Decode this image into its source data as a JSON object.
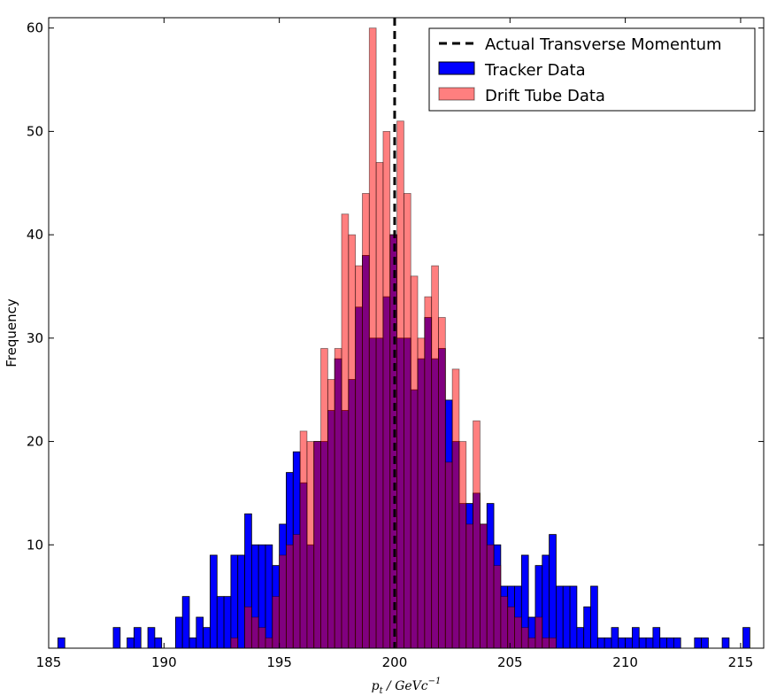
{
  "chart_data": {
    "type": "bar",
    "title": "",
    "xlabel": "p_t / GeVc^{-1}",
    "xlabel_main": "p",
    "xlabel_sub": "t",
    "xlabel_rest": " / GeVc",
    "xlabel_sup": "−1",
    "ylabel": "Frequency",
    "xlim": [
      185,
      216
    ],
    "ylim": [
      0,
      61
    ],
    "xticks": [
      185,
      190,
      195,
      200,
      205,
      210,
      215
    ],
    "yticks": [
      10,
      20,
      30,
      40,
      50,
      60
    ],
    "grid": false,
    "legend_position": "top-right",
    "bin_width": 0.3,
    "reference_line": {
      "name": "Actual Transverse Momentum",
      "x": 200,
      "style": "dashed",
      "color": "#000000"
    },
    "series": [
      {
        "name": "Tracker Data",
        "color": "#0000ff",
        "bin_starts": [
          185.4,
          187.8,
          188.4,
          188.7,
          189.3,
          189.6,
          190.5,
          190.8,
          191.1,
          191.4,
          191.7,
          192.0,
          192.3,
          192.6,
          192.9,
          193.2,
          193.5,
          193.8,
          194.1,
          194.4,
          194.7,
          195.0,
          195.3,
          195.6,
          195.9,
          196.2,
          196.5,
          196.8,
          197.1,
          197.4,
          197.7,
          198.0,
          198.3,
          198.6,
          198.9,
          199.2,
          199.5,
          199.8,
          200.1,
          200.4,
          200.7,
          201.0,
          201.3,
          201.6,
          201.9,
          202.2,
          202.5,
          202.8,
          203.1,
          203.4,
          203.7,
          204.0,
          204.3,
          204.6,
          204.9,
          205.2,
          205.5,
          205.8,
          206.1,
          206.4,
          206.7,
          207.0,
          207.3,
          207.6,
          207.9,
          208.2,
          208.5,
          208.8,
          209.1,
          209.4,
          209.7,
          210.0,
          210.3,
          210.6,
          210.9,
          211.2,
          211.5,
          211.8,
          212.1,
          213.0,
          213.3,
          214.2,
          215.1
        ],
        "values": [
          1,
          2,
          1,
          2,
          2,
          1,
          3,
          5,
          1,
          3,
          2,
          9,
          5,
          5,
          9,
          9,
          13,
          10,
          10,
          10,
          8,
          12,
          17,
          19,
          16,
          10,
          20,
          20,
          23,
          28,
          23,
          26,
          33,
          38,
          30,
          30,
          34,
          40,
          30,
          30,
          25,
          28,
          32,
          28,
          29,
          24,
          20,
          14,
          14,
          15,
          12,
          14,
          10,
          6,
          6,
          6,
          9,
          3,
          8,
          9,
          11,
          6,
          6,
          6,
          2,
          4,
          6,
          1,
          1,
          2,
          1,
          1,
          2,
          1,
          1,
          2,
          1,
          1,
          1,
          1,
          1,
          1,
          2
        ]
      },
      {
        "name": "Drift Tube Data",
        "color": "#ff0000",
        "opacity": 0.5,
        "bin_starts": [
          192.9,
          193.5,
          193.8,
          194.1,
          194.4,
          194.7,
          195.0,
          195.3,
          195.6,
          195.9,
          196.2,
          196.5,
          196.8,
          197.1,
          197.4,
          197.7,
          198.0,
          198.3,
          198.6,
          198.9,
          199.2,
          199.5,
          199.8,
          200.1,
          200.4,
          200.7,
          201.0,
          201.3,
          201.6,
          201.9,
          202.2,
          202.5,
          202.8,
          203.1,
          203.4,
          203.7,
          204.0,
          204.3,
          204.6,
          204.9,
          205.2,
          205.5,
          205.8,
          206.1,
          206.4,
          206.7
        ],
        "values": [
          1,
          4,
          3,
          2,
          1,
          5,
          9,
          10,
          11,
          21,
          20,
          20,
          29,
          26,
          29,
          42,
          40,
          37,
          44,
          60,
          47,
          50,
          40,
          51,
          44,
          36,
          30,
          34,
          37,
          32,
          18,
          27,
          20,
          12,
          22,
          12,
          10,
          8,
          5,
          4,
          3,
          2,
          1,
          3,
          1,
          1
        ]
      }
    ]
  }
}
